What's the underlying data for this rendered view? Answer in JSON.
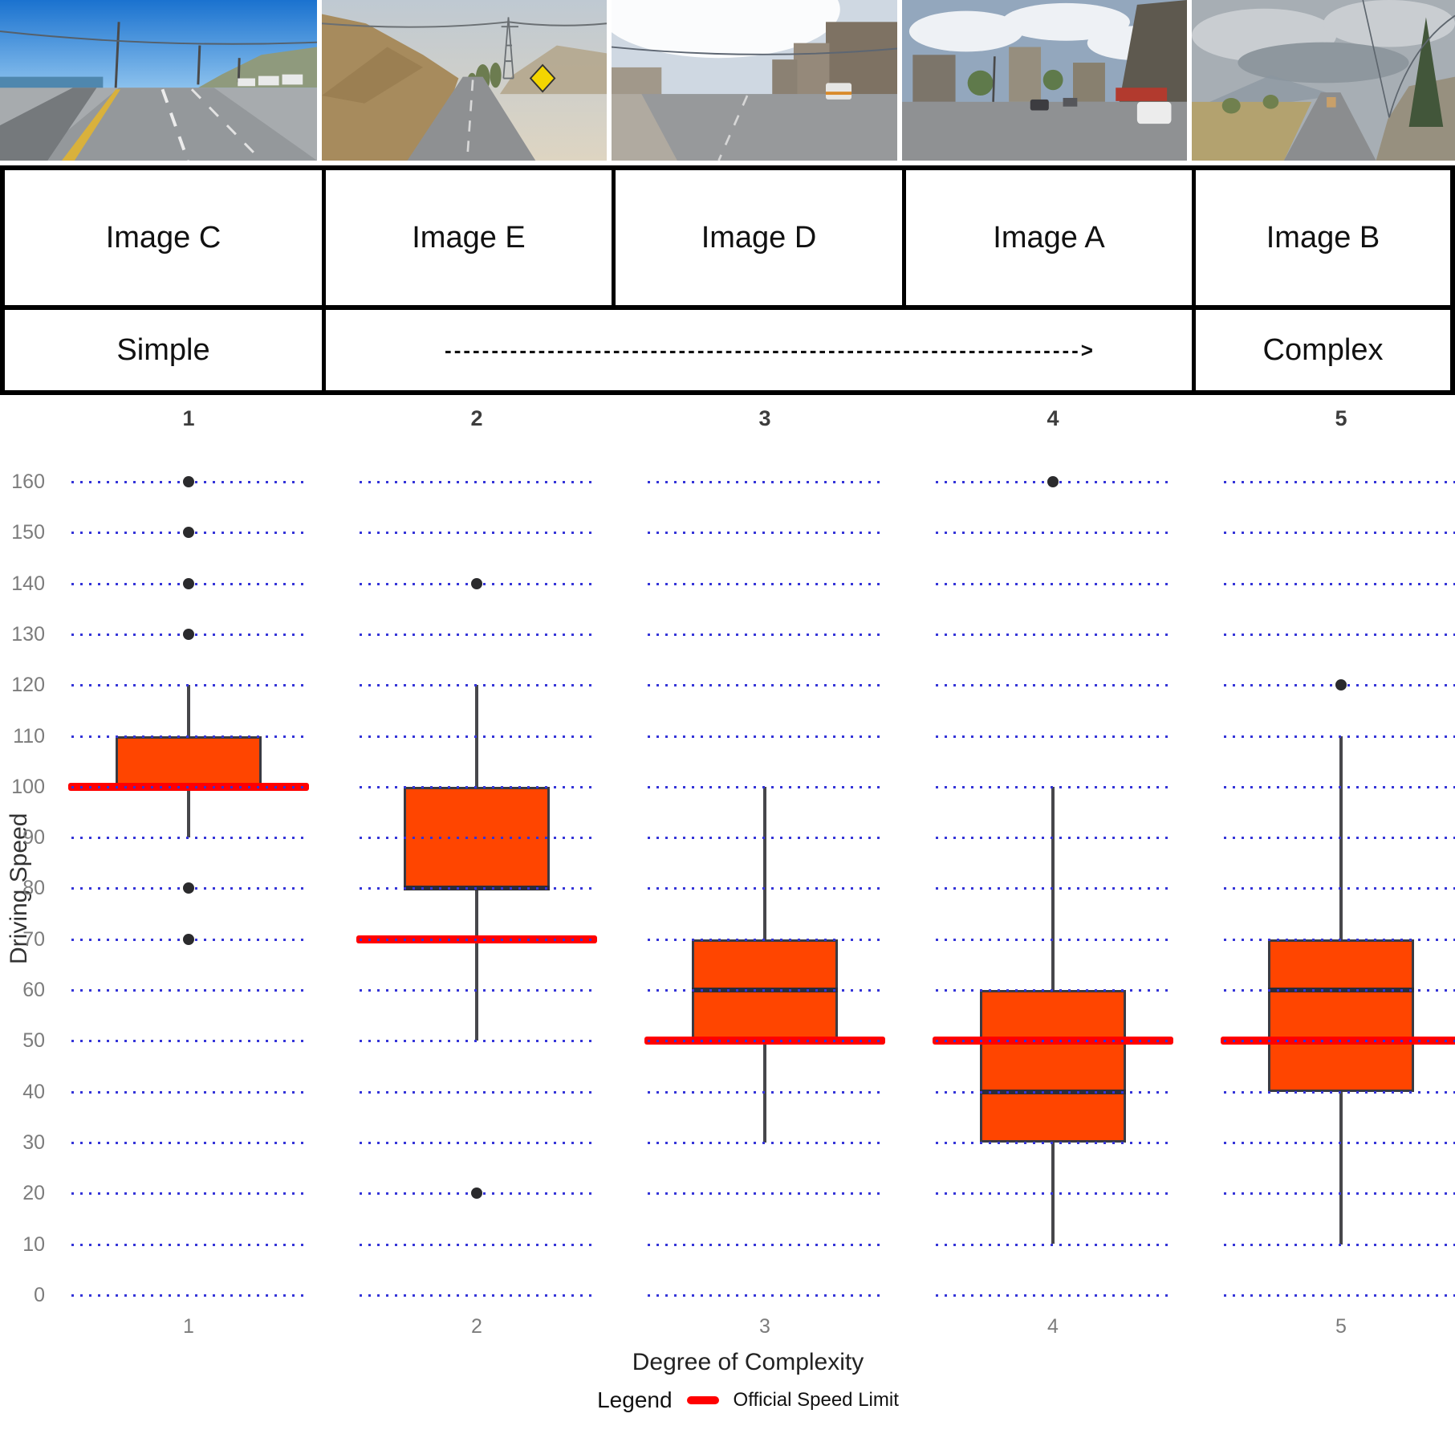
{
  "table": {
    "images": [
      {
        "label": "Image C",
        "scene": "coastal-highway-clear-sky"
      },
      {
        "label": "Image E",
        "scene": "mountain-road-rocky-slope"
      },
      {
        "label": "Image D",
        "scene": "urban-street-sun-glare"
      },
      {
        "label": "Image A",
        "scene": "busy-city-intersection"
      },
      {
        "label": "Image B",
        "scene": "overcast-suburban-road"
      }
    ],
    "complexity": {
      "left": "Simple",
      "arrow": "-------------------------------------------------------------------->",
      "right": "Complex"
    }
  },
  "chart_data": {
    "type": "boxplot",
    "xlabel": "Degree of Complexity",
    "ylabel": "Driving Speed",
    "ylim": [
      0,
      160
    ],
    "ytick_step": 10,
    "grid": "dotted-blue-horizontal",
    "categories": [
      "1",
      "2",
      "3",
      "4",
      "5"
    ],
    "panel_headers": [
      "1",
      "2",
      "3",
      "4",
      "5"
    ],
    "series": [
      {
        "category": "1",
        "whisker_low": 90,
        "q1": 100,
        "median": 100,
        "q3": 110,
        "whisker_high": 120,
        "outliers": [
          70,
          80,
          130,
          140,
          150,
          160
        ],
        "speed_limit": 100
      },
      {
        "category": "2",
        "whisker_low": 50,
        "q1": 80,
        "median": 80,
        "q3": 100,
        "whisker_high": 120,
        "outliers": [
          20,
          140
        ],
        "speed_limit": 70
      },
      {
        "category": "3",
        "whisker_low": 30,
        "q1": 50,
        "median": 60,
        "q3": 70,
        "whisker_high": 100,
        "outliers": [],
        "speed_limit": 50
      },
      {
        "category": "4",
        "whisker_low": 10,
        "q1": 30,
        "median": 40,
        "q3": 60,
        "whisker_high": 100,
        "outliers": [
          160
        ],
        "speed_limit": 50
      },
      {
        "category": "5",
        "whisker_low": 10,
        "q1": 40,
        "median": 60,
        "q3": 70,
        "whisker_high": 110,
        "outliers": [
          120
        ],
        "speed_limit": 50
      }
    ],
    "legend": {
      "label": "Legend",
      "items": [
        {
          "swatch_color": "#FF0000",
          "label": "Official Speed Limit"
        }
      ]
    },
    "colors": {
      "box_fill": "#FF4500",
      "box_stroke": "#3A3A42",
      "median": "#2C2C38",
      "gridline": "#3434D8",
      "speed_limit": "#FF0000",
      "outlier": "#2B2B2D",
      "tick_label": "#7C7C7C"
    }
  }
}
